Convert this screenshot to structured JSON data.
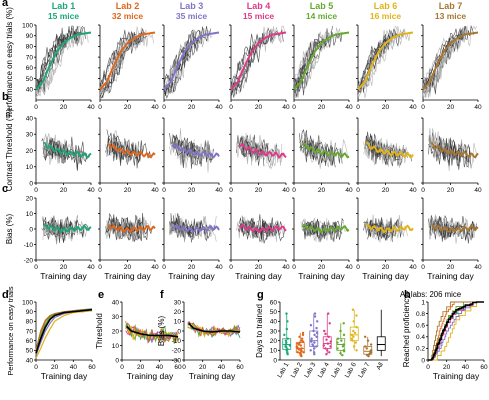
{
  "labs": [
    {
      "name": "Lab 1",
      "mice": "15 mice",
      "color": "#1aa67a",
      "days_to_trained": [
        6,
        8,
        10,
        11,
        13,
        14,
        15,
        16,
        18,
        20,
        22,
        26,
        32,
        40,
        48
      ]
    },
    {
      "name": "Lab 2",
      "mice": "32 mice",
      "color": "#e0661a",
      "days_to_trained": [
        4,
        5,
        6,
        7,
        8,
        8,
        9,
        10,
        10,
        11,
        12,
        12,
        13,
        14,
        15,
        16,
        17,
        18,
        19,
        20,
        22,
        24,
        26,
        28
      ]
    },
    {
      "name": "Lab 3",
      "mice": "35 mice",
      "color": "#7f74c8",
      "days_to_trained": [
        6,
        8,
        10,
        12,
        14,
        15,
        16,
        18,
        19,
        20,
        22,
        24,
        26,
        28,
        30,
        33,
        36,
        40,
        45,
        48
      ]
    },
    {
      "name": "Lab 4",
      "mice": "15 mice",
      "color": "#de3a8a",
      "days_to_trained": [
        6,
        8,
        10,
        12,
        14,
        15,
        17,
        19,
        21,
        24,
        27,
        30,
        38,
        48
      ]
    },
    {
      "name": "Lab 5",
      "mice": "14 mice",
      "color": "#67a82f",
      "days_to_trained": [
        5,
        7,
        9,
        10,
        12,
        14,
        16,
        18,
        20,
        22,
        26,
        30,
        38
      ]
    },
    {
      "name": "Lab 6",
      "mice": "16 mice",
      "color": "#e2b317",
      "days_to_trained": [
        10,
        14,
        18,
        20,
        22,
        24,
        26,
        28,
        30,
        34,
        40,
        46,
        52
      ]
    },
    {
      "name": "Lab 7",
      "mice": "13 mice",
      "color": "#a8772f",
      "days_to_trained": [
        4,
        5,
        6,
        7,
        8,
        9,
        10,
        12,
        14,
        16,
        20,
        24
      ]
    }
  ],
  "all_color": "#000000",
  "row_labels": {
    "a": "Performance on easy trials (%)",
    "b": "Contrast Threshold (%)",
    "c": "Bias (%)"
  },
  "shared_xlabel": "Training day",
  "panel_letters": [
    "a",
    "b",
    "c",
    "d",
    "e",
    "f",
    "g",
    "h"
  ],
  "chart_data": [
    {
      "type": "line",
      "panel": "a",
      "ylabel": "Performance on easy trials (%)",
      "xlim": [
        0,
        40
      ],
      "ylim": [
        30,
        100
      ],
      "xticks": [
        0,
        20,
        40
      ],
      "yticks": [
        40,
        50,
        60,
        70,
        80,
        90,
        100
      ],
      "series_per_lab": "individual mice (grey) and lab median (colored)",
      "median_curve": [
        [
          0,
          40
        ],
        [
          5,
          47
        ],
        [
          10,
          62
        ],
        [
          15,
          75
        ],
        [
          20,
          83
        ],
        [
          25,
          88
        ],
        [
          30,
          91
        ],
        [
          35,
          92
        ],
        [
          40,
          93
        ]
      ]
    },
    {
      "type": "line",
      "panel": "b",
      "ylabel": "Contrast Threshold (%)",
      "xlim": [
        0,
        40
      ],
      "ylim": [
        0,
        40
      ],
      "xticks": [
        0,
        20,
        40
      ],
      "yticks": [
        0,
        10,
        20,
        30,
        40
      ],
      "median_curve": [
        [
          6,
          24
        ],
        [
          10,
          22
        ],
        [
          15,
          20
        ],
        [
          20,
          19
        ],
        [
          25,
          18
        ],
        [
          30,
          18
        ],
        [
          35,
          17
        ],
        [
          40,
          17
        ]
      ]
    },
    {
      "type": "line",
      "panel": "c",
      "ylabel": "Bias (%)",
      "xlabel": "Training day",
      "xlim": [
        0,
        40
      ],
      "ylim": [
        -20,
        20
      ],
      "xticks": [
        0,
        20,
        40
      ],
      "yticks": [
        -20,
        -10,
        0,
        10,
        20
      ],
      "median_curve": [
        [
          6,
          2
        ],
        [
          10,
          1
        ],
        [
          15,
          0
        ],
        [
          20,
          -1
        ],
        [
          25,
          0
        ],
        [
          30,
          0
        ],
        [
          35,
          1
        ],
        [
          40,
          0
        ]
      ]
    },
    {
      "type": "line",
      "panel": "d",
      "ylabel": "Performance on easy trials",
      "xlabel": "Training day",
      "xlim": [
        0,
        60
      ],
      "ylim": [
        40,
        100
      ],
      "xticks": [
        0,
        20,
        40,
        60
      ],
      "yticks": [
        40,
        50,
        60,
        70,
        80,
        90,
        100
      ],
      "series": [
        {
          "lab": "Lab 1",
          "values": [
            [
              0,
              45
            ],
            [
              5,
              60
            ],
            [
              10,
              73
            ],
            [
              15,
              82
            ],
            [
              20,
              86
            ],
            [
              30,
              89
            ],
            [
              40,
              91
            ],
            [
              50,
              92
            ],
            [
              60,
              93
            ]
          ]
        },
        {
          "lab": "Lab 2",
          "values": [
            [
              0,
              50
            ],
            [
              5,
              68
            ],
            [
              10,
              80
            ],
            [
              15,
              85
            ],
            [
              20,
              87
            ],
            [
              30,
              89
            ],
            [
              40,
              90
            ],
            [
              50,
              91
            ],
            [
              60,
              91
            ]
          ]
        },
        {
          "lab": "Lab 3",
          "values": [
            [
              0,
              45
            ],
            [
              5,
              58
            ],
            [
              10,
              70
            ],
            [
              15,
              78
            ],
            [
              20,
              84
            ],
            [
              30,
              88
            ],
            [
              40,
              90
            ],
            [
              50,
              91
            ],
            [
              60,
              92
            ]
          ]
        },
        {
          "lab": "Lab 4",
          "values": [
            [
              0,
              48
            ],
            [
              5,
              62
            ],
            [
              10,
              74
            ],
            [
              15,
              82
            ],
            [
              20,
              86
            ],
            [
              30,
              89
            ],
            [
              40,
              90
            ],
            [
              50,
              90
            ],
            [
              60,
              91
            ]
          ]
        },
        {
          "lab": "Lab 5",
          "values": [
            [
              0,
              50
            ],
            [
              5,
              65
            ],
            [
              10,
              77
            ],
            [
              15,
              84
            ],
            [
              20,
              87
            ],
            [
              30,
              89
            ],
            [
              40,
              90
            ],
            [
              50,
              91
            ],
            [
              60,
              92
            ]
          ]
        },
        {
          "lab": "Lab 6",
          "values": [
            [
              0,
              42
            ],
            [
              5,
              52
            ],
            [
              10,
              63
            ],
            [
              15,
              72
            ],
            [
              20,
              80
            ],
            [
              30,
              86
            ],
            [
              40,
              89
            ],
            [
              50,
              90
            ],
            [
              60,
              91
            ]
          ]
        },
        {
          "lab": "Lab 7",
          "values": [
            [
              0,
              50
            ],
            [
              5,
              70
            ],
            [
              10,
              81
            ],
            [
              15,
              86
            ],
            [
              20,
              88
            ],
            [
              30,
              90
            ],
            [
              40,
              91
            ],
            [
              50,
              92
            ],
            [
              60,
              92
            ]
          ]
        },
        {
          "lab": "All",
          "values": [
            [
              0,
              47
            ],
            [
              5,
              62
            ],
            [
              10,
              74
            ],
            [
              15,
              82
            ],
            [
              20,
              86
            ],
            [
              30,
              89
            ],
            [
              40,
              90
            ],
            [
              50,
              91
            ],
            [
              60,
              92
            ]
          ]
        }
      ]
    },
    {
      "type": "line",
      "panel": "e",
      "ylabel": "Threshold",
      "xlabel": "Training day",
      "xlim": [
        0,
        60
      ],
      "ylim": [
        0,
        40
      ],
      "xticks": [
        0,
        20,
        40,
        60
      ],
      "yticks": [
        0,
        10,
        20,
        30,
        40
      ],
      "median_curve": [
        [
          5,
          23
        ],
        [
          10,
          20
        ],
        [
          20,
          18
        ],
        [
          30,
          17
        ],
        [
          40,
          17
        ],
        [
          50,
          17
        ],
        [
          60,
          16
        ]
      ]
    },
    {
      "type": "line",
      "panel": "f",
      "ylabel": "Bias (%)",
      "xlabel": "Training day",
      "xlim": [
        0,
        60
      ],
      "ylim": [
        -30,
        30
      ],
      "xticks": [
        0,
        20,
        40,
        60
      ],
      "yticks": [
        -30,
        -20,
        -10,
        0,
        10,
        20,
        30
      ],
      "median_curve": [
        [
          5,
          8
        ],
        [
          10,
          3
        ],
        [
          20,
          0
        ],
        [
          30,
          -1
        ],
        [
          40,
          0
        ],
        [
          50,
          0
        ],
        [
          60,
          -1
        ]
      ]
    },
    {
      "type": "box",
      "panel": "g",
      "ylabel": "Days to trained",
      "ylim": [
        0,
        60
      ],
      "yticks": [
        0,
        10,
        20,
        30,
        40,
        50,
        60
      ],
      "categories": [
        "Lab 1",
        "Lab 2",
        "Lab 3",
        "Lab 4",
        "Lab 5",
        "Lab 6",
        "Lab 7",
        "All"
      ]
    },
    {
      "type": "line",
      "panel": "h",
      "title": "All labs: 206 mice",
      "ylabel": "Reached proficiency",
      "xlabel": "Training day",
      "xlim": [
        0,
        60
      ],
      "ylim": [
        0,
        1
      ],
      "xticks": [
        0,
        20,
        40,
        60
      ],
      "yticks": [
        0,
        0.2,
        0.4,
        0.6,
        0.8,
        1
      ]
    }
  ]
}
